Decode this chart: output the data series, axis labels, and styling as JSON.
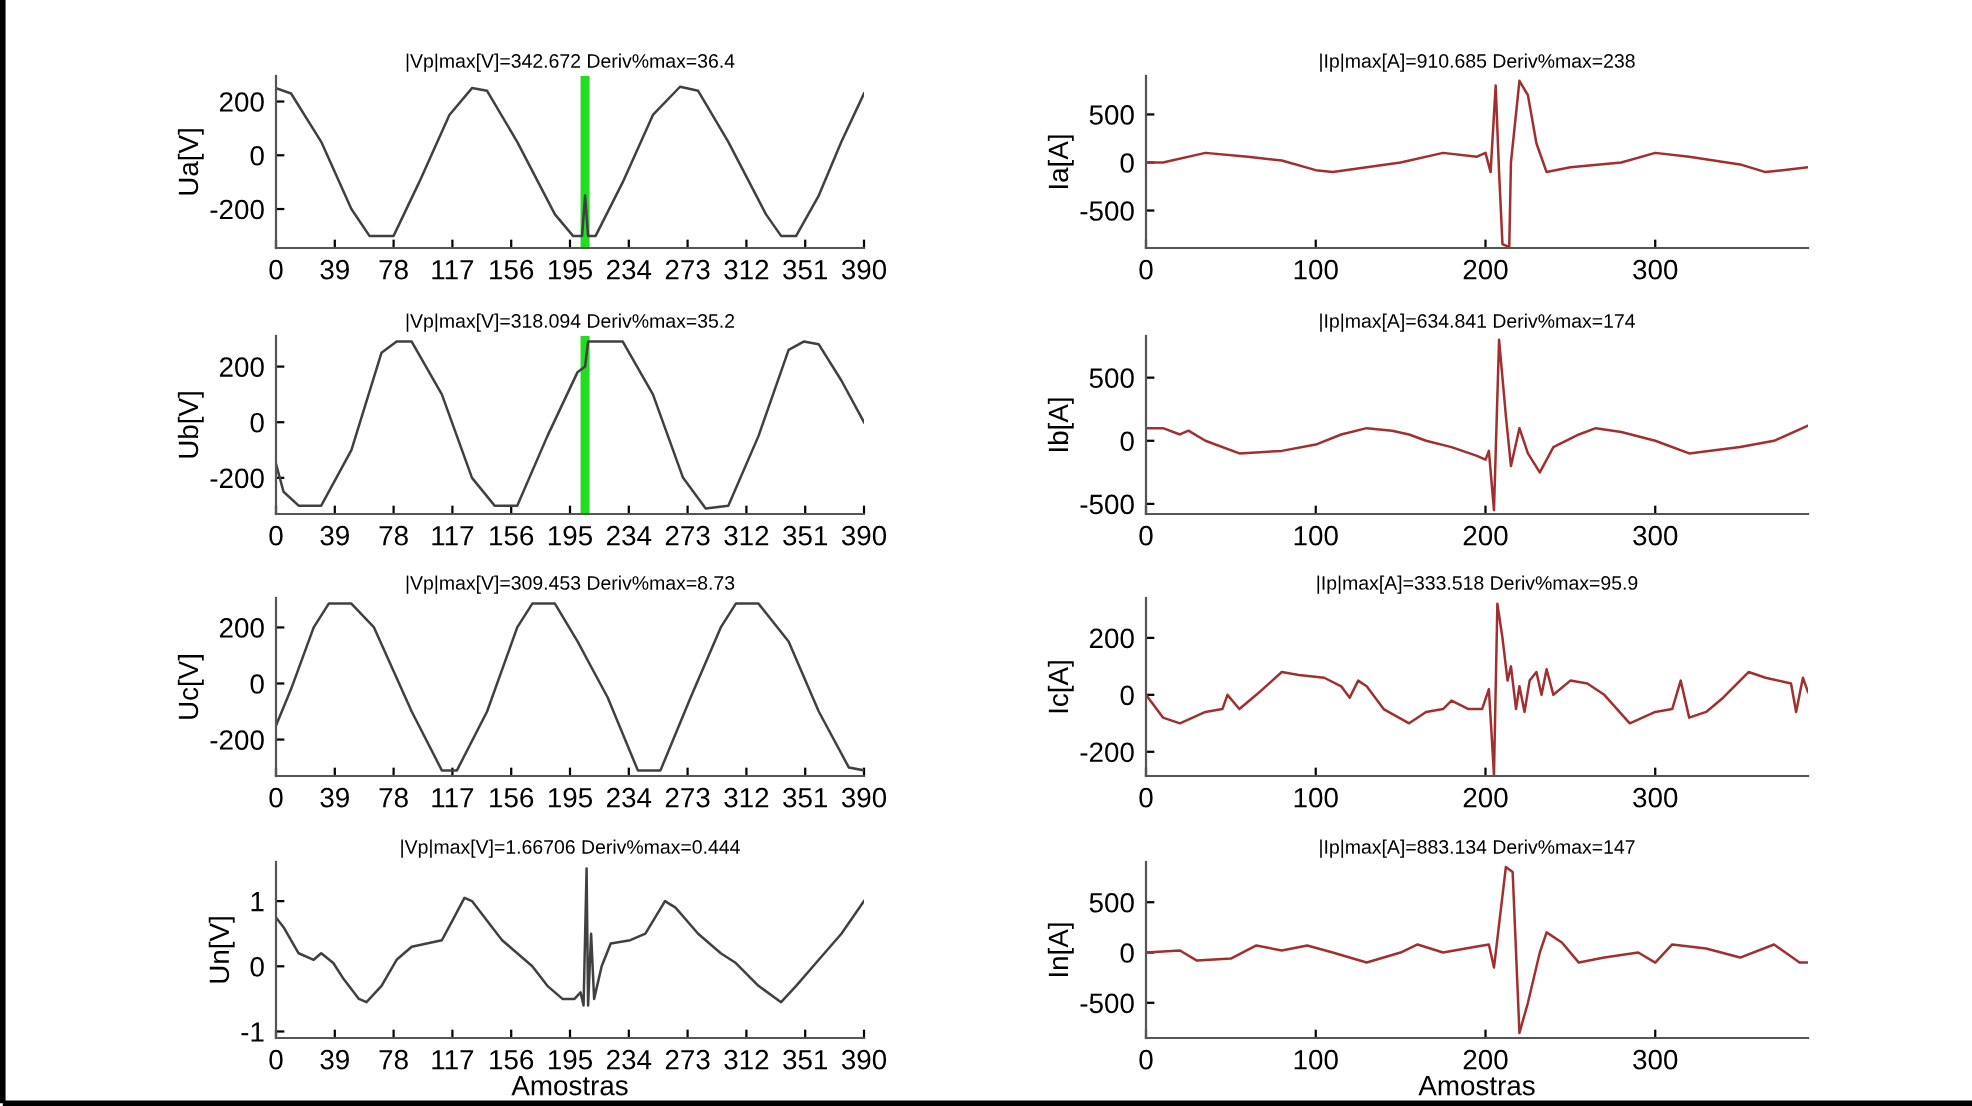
{
  "chart_data": [
    {
      "type": "line",
      "title": "|Vp|max[V]=342.672 Deriv%max=36.4",
      "ylabel": "Ua[V]",
      "xlim": [
        0,
        390
      ],
      "ylim": [
        -345,
        295
      ],
      "xticks": [
        0,
        39,
        78,
        117,
        156,
        195,
        234,
        273,
        312,
        351,
        390
      ],
      "yticks": [
        -200,
        0,
        200
      ],
      "grid": false,
      "bands": [
        {
          "axis": "x",
          "from": 202,
          "to": 208,
          "color": "#22dd22"
        }
      ],
      "series": [
        {
          "color": "#404040",
          "x": [
            0,
            10,
            30,
            50,
            62,
            78,
            95,
            115,
            130,
            140,
            160,
            185,
            197,
            203,
            205,
            207,
            212,
            230,
            250,
            268,
            280,
            300,
            325,
            335,
            345,
            360,
            375,
            390
          ],
          "values": [
            250,
            230,
            50,
            -200,
            -300,
            -300,
            -100,
            150,
            250,
            240,
            50,
            -220,
            -300,
            -300,
            -150,
            -300,
            -300,
            -100,
            150,
            255,
            240,
            50,
            -220,
            -300,
            -300,
            -150,
            50,
            230
          ]
        }
      ]
    },
    {
      "type": "line",
      "title": "|Ip|max[A]=910.685 Deriv%max=238",
      "ylabel": "Ia[A]",
      "xlim": [
        0,
        390
      ],
      "ylim": [
        -890,
        900
      ],
      "xticks": [
        0,
        100,
        200,
        300
      ],
      "yticks": [
        -500,
        0,
        500
      ],
      "grid": false,
      "series": [
        {
          "color": "#a03030",
          "x": [
            0,
            10,
            35,
            60,
            80,
            100,
            110,
            130,
            150,
            175,
            195,
            200,
            203,
            206,
            208,
            210,
            214,
            215,
            220,
            225,
            230,
            236,
            250,
            280,
            300,
            320,
            350,
            365,
            375,
            390
          ],
          "values": [
            0,
            0,
            100,
            60,
            20,
            -80,
            -100,
            -50,
            0,
            100,
            60,
            100,
            -100,
            800,
            -100,
            -850,
            -880,
            0,
            850,
            700,
            200,
            -100,
            -50,
            0,
            100,
            60,
            -20,
            -100,
            -80,
            -50
          ]
        }
      ]
    },
    {
      "type": "line",
      "title": "|Vp|max[V]=318.094 Deriv%max=35.2",
      "ylabel": "Ub[V]",
      "xlim": [
        0,
        390
      ],
      "ylim": [
        -330,
        310
      ],
      "xticks": [
        0,
        39,
        78,
        117,
        156,
        195,
        234,
        273,
        312,
        351,
        390
      ],
      "yticks": [
        -200,
        0,
        200
      ],
      "grid": false,
      "bands": [
        {
          "axis": "x",
          "from": 202,
          "to": 208,
          "color": "#22dd22"
        }
      ],
      "series": [
        {
          "color": "#404040",
          "x": [
            0,
            5,
            15,
            30,
            50,
            70,
            80,
            90,
            110,
            130,
            145,
            160,
            180,
            200,
            205,
            207,
            215,
            230,
            250,
            270,
            285,
            300,
            320,
            340,
            350,
            360,
            375,
            390
          ],
          "values": [
            -150,
            -250,
            -300,
            -300,
            -100,
            250,
            290,
            290,
            100,
            -200,
            -300,
            -300,
            -50,
            180,
            200,
            290,
            290,
            290,
            100,
            -200,
            -310,
            -300,
            -50,
            260,
            290,
            280,
            150,
            0
          ]
        }
      ]
    },
    {
      "type": "line",
      "title": "|Ip|max[A]=634.841 Deriv%max=174",
      "ylabel": "Ib[A]",
      "xlim": [
        0,
        390
      ],
      "ylim": [
        -580,
        830
      ],
      "xticks": [
        0,
        100,
        200,
        300
      ],
      "yticks": [
        -500,
        0,
        500
      ],
      "grid": false,
      "series": [
        {
          "color": "#a03030",
          "x": [
            0,
            10,
            20,
            25,
            35,
            55,
            80,
            100,
            115,
            130,
            145,
            155,
            165,
            180,
            195,
            200,
            202,
            205,
            208,
            212,
            215,
            220,
            225,
            232,
            240,
            255,
            265,
            280,
            300,
            320,
            350,
            370,
            390
          ],
          "values": [
            100,
            100,
            50,
            80,
            0,
            -100,
            -80,
            -30,
            50,
            100,
            80,
            50,
            0,
            -50,
            -120,
            -150,
            -80,
            -550,
            800,
            200,
            -200,
            100,
            -100,
            -250,
            -50,
            50,
            100,
            70,
            0,
            -100,
            -50,
            0,
            120
          ]
        }
      ]
    },
    {
      "type": "line",
      "title": "|Vp|max[V]=309.453 Deriv%max=8.73",
      "ylabel": "Uc[V]",
      "xlim": [
        0,
        390
      ],
      "ylim": [
        -330,
        305
      ],
      "xticks": [
        0,
        39,
        78,
        117,
        156,
        195,
        234,
        273,
        312,
        351,
        390
      ],
      "yticks": [
        -200,
        0,
        200
      ],
      "grid": false,
      "series": [
        {
          "color": "#404040",
          "x": [
            0,
            10,
            25,
            35,
            50,
            65,
            90,
            110,
            120,
            140,
            160,
            170,
            185,
            200,
            210,
            220,
            240,
            255,
            275,
            295,
            305,
            320,
            340,
            360,
            380,
            390
          ],
          "values": [
            -150,
            -20,
            200,
            285,
            285,
            200,
            -100,
            -310,
            -310,
            -100,
            200,
            285,
            285,
            150,
            50,
            -50,
            -310,
            -310,
            -50,
            200,
            285,
            285,
            150,
            -100,
            -300,
            -310
          ]
        }
      ]
    },
    {
      "type": "line",
      "title": "|Ip|max[A]=333.518 Deriv%max=95.9",
      "ylabel": "Ic[A]",
      "xlim": [
        0,
        390
      ],
      "ylim": [
        -285,
        340
      ],
      "xticks": [
        0,
        100,
        200,
        300
      ],
      "yticks": [
        -200,
        0,
        200
      ],
      "grid": false,
      "series": [
        {
          "color": "#a03030",
          "x": [
            0,
            10,
            20,
            35,
            45,
            48,
            55,
            65,
            80,
            90,
            105,
            115,
            120,
            125,
            130,
            140,
            155,
            165,
            175,
            180,
            190,
            198,
            202,
            205,
            207,
            210,
            213,
            215,
            218,
            220,
            223,
            226,
            230,
            233,
            236,
            240,
            250,
            260,
            270,
            285,
            300,
            310,
            315,
            320,
            330,
            340,
            355,
            365,
            380,
            383,
            387,
            390
          ],
          "values": [
            0,
            -80,
            -100,
            -60,
            -50,
            0,
            -50,
            0,
            80,
            70,
            60,
            30,
            -10,
            50,
            30,
            -50,
            -100,
            -60,
            -50,
            -20,
            -50,
            -50,
            20,
            -280,
            320,
            200,
            50,
            100,
            -50,
            30,
            -60,
            50,
            80,
            0,
            90,
            0,
            50,
            40,
            0,
            -100,
            -60,
            -50,
            50,
            -80,
            -60,
            -10,
            80,
            60,
            40,
            -60,
            60,
            10
          ]
        }
      ]
    },
    {
      "type": "line",
      "title": "|Vp|max[V]=1.66706 Deriv%max=0.444",
      "ylabel": "Un[V]",
      "xlabel": "Amostras",
      "xlim": [
        0,
        390
      ],
      "ylim": [
        -1.1,
        1.6
      ],
      "xticks": [
        0,
        39,
        78,
        117,
        156,
        195,
        234,
        273,
        312,
        351,
        390
      ],
      "yticks": [
        -1,
        0,
        1
      ],
      "grid": false,
      "series": [
        {
          "color": "#404040",
          "x": [
            0,
            5,
            15,
            25,
            30,
            38,
            45,
            55,
            60,
            70,
            80,
            90,
            100,
            110,
            117,
            125,
            130,
            140,
            150,
            160,
            170,
            180,
            190,
            198,
            202,
            204,
            206,
            207,
            209,
            211,
            213,
            216,
            222,
            235,
            245,
            258,
            265,
            280,
            295,
            305,
            320,
            335,
            345,
            360,
            375,
            390
          ],
          "values": [
            0.75,
            0.6,
            0.2,
            0.1,
            0.2,
            0.05,
            -0.2,
            -0.5,
            -0.55,
            -0.3,
            0.1,
            0.3,
            0.35,
            0.4,
            0.7,
            1.05,
            1.0,
            0.7,
            0.4,
            0.2,
            0.0,
            -0.3,
            -0.5,
            -0.5,
            -0.4,
            -0.6,
            1.5,
            -0.6,
            0.5,
            -0.5,
            -0.3,
            0.0,
            0.35,
            0.4,
            0.5,
            1.0,
            0.9,
            0.5,
            0.2,
            0.05,
            -0.3,
            -0.55,
            -0.3,
            0.1,
            0.5,
            1.0
          ]
        }
      ]
    },
    {
      "type": "line",
      "title": "|Ip|max[A]=883.134 Deriv%max=147",
      "ylabel": "In[A]",
      "xlabel": "Amostras",
      "xlim": [
        0,
        390
      ],
      "ylim": [
        -850,
        900
      ],
      "xticks": [
        0,
        100,
        200,
        300
      ],
      "yticks": [
        -500,
        0,
        500
      ],
      "grid": false,
      "series": [
        {
          "color": "#a03030",
          "x": [
            0,
            20,
            30,
            50,
            65,
            80,
            95,
            110,
            130,
            150,
            160,
            175,
            195,
            202,
            205,
            212,
            216,
            220,
            225,
            232,
            236,
            245,
            255,
            270,
            290,
            300,
            310,
            330,
            350,
            370,
            385,
            390
          ],
          "values": [
            0,
            20,
            -80,
            -60,
            70,
            20,
            70,
            0,
            -100,
            0,
            80,
            0,
            60,
            80,
            -150,
            850,
            800,
            -800,
            -500,
            0,
            200,
            100,
            -100,
            -50,
            0,
            -100,
            80,
            40,
            -50,
            80,
            -100,
            -100
          ]
        }
      ]
    }
  ]
}
